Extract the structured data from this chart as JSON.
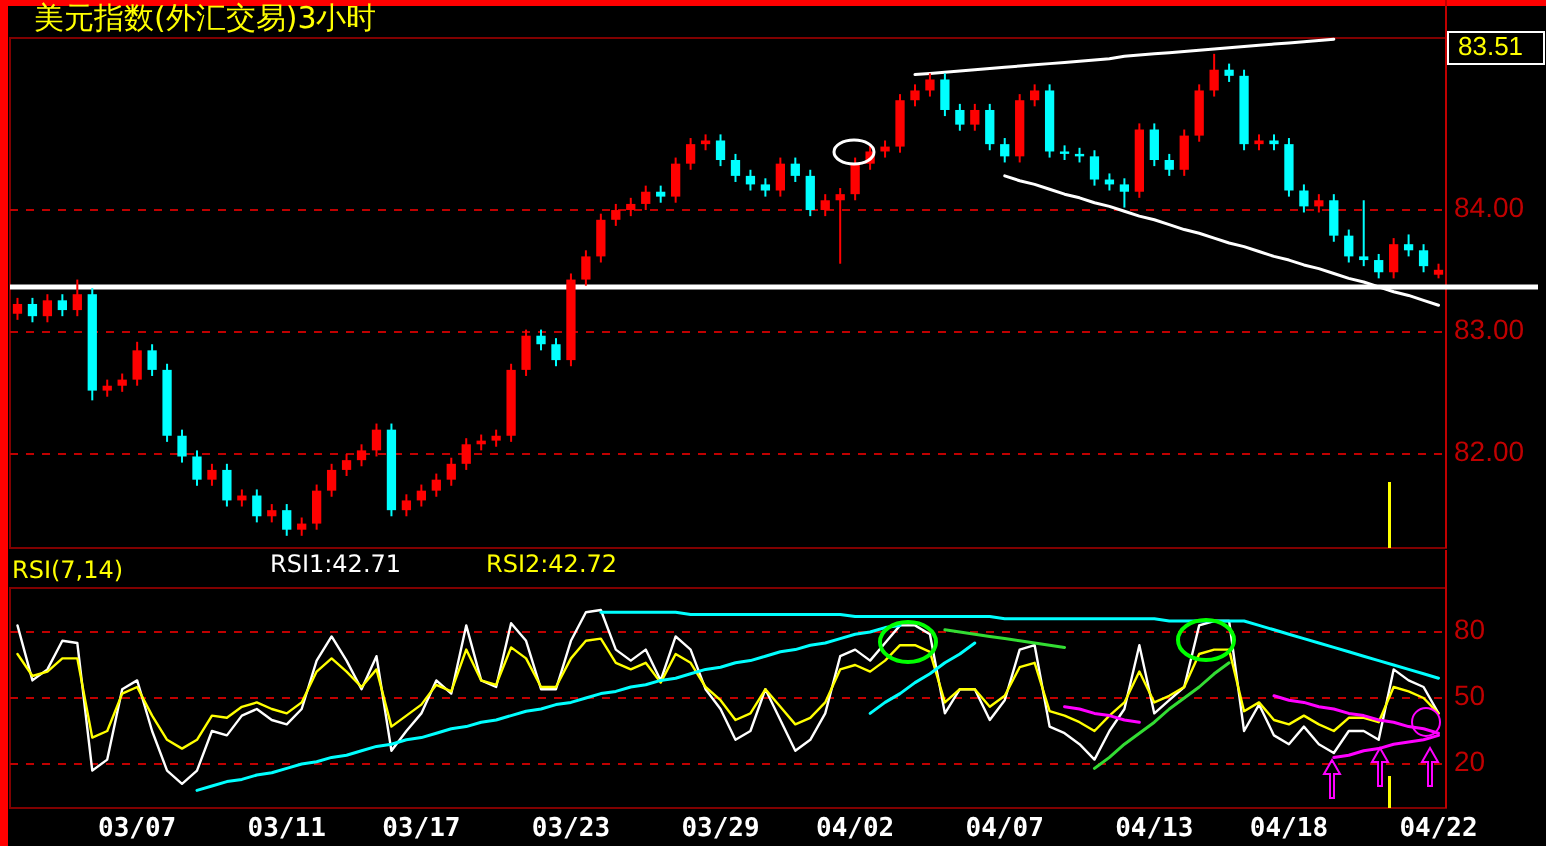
{
  "chart_data": [
    {
      "type": "candlestick",
      "title": "美元指数(外汇交易)3小时",
      "categories": [
        null,
        null,
        null,
        null,
        null,
        null,
        null,
        null,
        null,
        null,
        null,
        null,
        null,
        null,
        null,
        null,
        null,
        null,
        null,
        null,
        null,
        null,
        null,
        null,
        null,
        null,
        null,
        null,
        null,
        null,
        null,
        null,
        null,
        null,
        null,
        null,
        null,
        null,
        null,
        null,
        null,
        null,
        null,
        null,
        null,
        null,
        null,
        null,
        null,
        null,
        null,
        null,
        null,
        null,
        null,
        null,
        null,
        null,
        null,
        null,
        null,
        null,
        null,
        null,
        null,
        null,
        null,
        null,
        null,
        null,
        null,
        null,
        null,
        null,
        null,
        null,
        null,
        null,
        null,
        null,
        null,
        null,
        null,
        null,
        null,
        null,
        null,
        null,
        null,
        null,
        null,
        null,
        null,
        null,
        null,
        null
      ],
      "ohlc": [
        [
          83.15,
          83.28,
          83.1,
          83.23
        ],
        [
          83.23,
          83.28,
          83.08,
          83.13
        ],
        [
          83.13,
          83.31,
          83.08,
          83.26
        ],
        [
          83.26,
          83.31,
          83.13,
          83.18
        ],
        [
          83.18,
          83.43,
          83.13,
          83.31
        ],
        [
          83.31,
          83.36,
          82.44,
          82.52
        ],
        [
          82.52,
          82.61,
          82.47,
          82.56
        ],
        [
          82.56,
          82.66,
          82.51,
          82.61
        ],
        [
          82.61,
          82.92,
          82.56,
          82.85
        ],
        [
          82.85,
          82.9,
          82.64,
          82.69
        ],
        [
          82.69,
          82.74,
          82.1,
          82.15
        ],
        [
          82.15,
          82.2,
          81.93,
          81.98
        ],
        [
          81.98,
          82.03,
          81.74,
          81.79
        ],
        [
          81.79,
          81.92,
          81.74,
          81.87
        ],
        [
          81.87,
          81.92,
          81.57,
          81.62
        ],
        [
          81.62,
          81.71,
          81.57,
          81.66
        ],
        [
          81.66,
          81.71,
          81.44,
          81.49
        ],
        [
          81.49,
          81.59,
          81.44,
          81.54
        ],
        [
          81.54,
          81.59,
          81.33,
          81.38
        ],
        [
          81.38,
          81.48,
          81.33,
          81.43
        ],
        [
          81.43,
          81.75,
          81.38,
          81.7
        ],
        [
          81.7,
          81.92,
          81.65,
          81.87
        ],
        [
          81.87,
          82.0,
          81.82,
          81.95
        ],
        [
          81.95,
          82.08,
          81.9,
          82.03
        ],
        [
          82.03,
          82.25,
          81.98,
          82.2
        ],
        [
          82.2,
          82.25,
          81.49,
          81.54
        ],
        [
          81.54,
          81.67,
          81.49,
          81.62
        ],
        [
          81.62,
          81.75,
          81.57,
          81.7
        ],
        [
          81.7,
          81.84,
          81.65,
          81.79
        ],
        [
          81.79,
          81.97,
          81.74,
          81.92
        ],
        [
          81.92,
          82.13,
          81.87,
          82.08
        ],
        [
          82.08,
          82.16,
          82.03,
          82.11
        ],
        [
          82.11,
          82.2,
          82.06,
          82.15
        ],
        [
          82.15,
          82.74,
          82.1,
          82.69
        ],
        [
          82.69,
          83.02,
          82.64,
          82.97
        ],
        [
          82.97,
          83.02,
          82.85,
          82.9
        ],
        [
          82.9,
          82.95,
          82.72,
          82.77
        ],
        [
          82.77,
          83.48,
          82.72,
          83.43
        ],
        [
          83.43,
          83.67,
          83.38,
          83.62
        ],
        [
          83.62,
          83.97,
          83.57,
          83.92
        ],
        [
          83.92,
          84.05,
          83.87,
          84.0
        ],
        [
          84.0,
          84.1,
          83.95,
          84.05
        ],
        [
          84.05,
          84.2,
          84.0,
          84.15
        ],
        [
          84.15,
          84.2,
          84.06,
          84.11
        ],
        [
          84.11,
          84.43,
          84.06,
          84.38
        ],
        [
          84.38,
          84.59,
          84.33,
          84.54
        ],
        [
          84.54,
          84.62,
          84.49,
          84.57
        ],
        [
          84.57,
          84.62,
          84.36,
          84.41
        ],
        [
          84.41,
          84.46,
          84.23,
          84.28
        ],
        [
          84.28,
          84.33,
          84.16,
          84.21
        ],
        [
          84.21,
          84.26,
          84.11,
          84.16
        ],
        [
          84.16,
          84.43,
          84.11,
          84.38
        ],
        [
          84.38,
          84.43,
          84.23,
          84.28
        ],
        [
          84.28,
          84.33,
          83.95,
          84.0
        ],
        [
          84.0,
          84.13,
          83.95,
          84.08
        ],
        [
          84.08,
          84.18,
          83.56,
          84.13
        ],
        [
          84.13,
          84.43,
          84.08,
          84.38
        ],
        [
          84.38,
          84.53,
          84.33,
          84.48
        ],
        [
          84.48,
          84.57,
          84.43,
          84.52
        ],
        [
          84.52,
          84.95,
          84.47,
          84.9
        ],
        [
          84.9,
          85.03,
          84.85,
          84.98
        ],
        [
          84.98,
          85.12,
          84.93,
          85.07
        ],
        [
          85.07,
          85.12,
          84.77,
          84.82
        ],
        [
          84.82,
          84.87,
          84.65,
          84.7
        ],
        [
          84.7,
          84.87,
          84.65,
          84.82
        ],
        [
          84.82,
          84.87,
          84.49,
          84.54
        ],
        [
          84.54,
          84.59,
          84.39,
          84.44
        ],
        [
          84.44,
          84.95,
          84.39,
          84.9
        ],
        [
          84.9,
          85.03,
          84.85,
          84.98
        ],
        [
          84.98,
          85.03,
          84.43,
          84.48
        ],
        [
          84.48,
          84.53,
          84.41,
          84.46
        ],
        [
          84.46,
          84.51,
          84.39,
          84.44
        ],
        [
          84.44,
          84.49,
          84.2,
          84.25
        ],
        [
          84.25,
          84.3,
          84.16,
          84.21
        ],
        [
          84.21,
          84.26,
          84.02,
          84.15
        ],
        [
          84.15,
          84.71,
          84.1,
          84.66
        ],
        [
          84.66,
          84.71,
          84.36,
          84.41
        ],
        [
          84.41,
          84.46,
          84.28,
          84.33
        ],
        [
          84.33,
          84.66,
          84.28,
          84.61
        ],
        [
          84.61,
          85.03,
          84.56,
          84.98
        ],
        [
          84.98,
          85.28,
          84.93,
          85.15
        ],
        [
          85.15,
          85.2,
          85.05,
          85.1
        ],
        [
          85.1,
          85.15,
          84.49,
          84.54
        ],
        [
          84.54,
          84.62,
          84.49,
          84.57
        ],
        [
          84.57,
          84.62,
          84.49,
          84.54
        ],
        [
          84.54,
          84.59,
          84.11,
          84.16
        ],
        [
          84.16,
          84.21,
          83.98,
          84.03
        ],
        [
          84.03,
          84.13,
          83.98,
          84.08
        ],
        [
          84.08,
          84.13,
          83.74,
          83.79
        ],
        [
          83.79,
          83.84,
          83.57,
          83.62
        ],
        [
          83.62,
          84.08,
          83.54,
          83.59
        ],
        [
          83.59,
          83.64,
          83.44,
          83.49
        ],
        [
          83.49,
          83.77,
          83.44,
          83.72
        ],
        [
          83.72,
          83.8,
          83.62,
          83.67
        ],
        [
          83.67,
          83.72,
          83.49,
          83.54
        ],
        [
          83.47,
          83.56,
          83.44,
          83.51
        ]
      ],
      "colors": [
        "#ff0000",
        "#00ffff",
        "#ff0000",
        "#00ffff",
        "#ff0000",
        "#00ffff",
        "#ff0000",
        "#ff0000",
        "#ff0000",
        "#00ffff",
        "#00ffff",
        "#00ffff",
        "#00ffff",
        "#ff0000",
        "#00ffff",
        "#ff0000",
        "#00ffff",
        "#ff0000",
        "#00ffff",
        "#ff0000",
        "#ff0000",
        "#ff0000",
        "#ff0000",
        "#ff0000",
        "#ff0000",
        "#00ffff",
        "#ff0000",
        "#ff0000",
        "#ff0000",
        "#ff0000",
        "#ff0000",
        "#ff0000",
        "#ff0000",
        "#ff0000",
        "#ff0000",
        "#00ffff",
        "#00ffff",
        "#ff0000",
        "#ff0000",
        "#ff0000",
        "#ff0000",
        "#ff0000",
        "#ff0000",
        "#00ffff",
        "#ff0000",
        "#ff0000",
        "#ff0000",
        "#00ffff",
        "#00ffff",
        "#00ffff",
        "#00ffff",
        "#ff0000",
        "#00ffff",
        "#00ffff",
        "#ff0000",
        "#ff0000",
        "#ff0000",
        "#ff0000",
        "#ff0000",
        "#ff0000",
        "#ff0000",
        "#ff0000",
        "#00ffff",
        "#00ffff",
        "#ff0000",
        "#00ffff",
        "#00ffff",
        "#ff0000",
        "#ff0000",
        "#00ffff",
        "#00ffff",
        "#00ffff",
        "#00ffff",
        "#00ffff",
        "#00ffff",
        "#ff0000",
        "#00ffff",
        "#00ffff",
        "#ff0000",
        "#ff0000",
        "#ff0000",
        "#00ffff",
        "#00ffff",
        "#ff0000",
        "#00ffff",
        "#00ffff",
        "#00ffff",
        "#ff0000",
        "#00ffff",
        "#00ffff",
        "#00ffff",
        "#00ffff",
        "#ff0000",
        "#00ffff",
        "#00ffff",
        "#ff0000"
      ],
      "series": [
        {
          "type": "line",
          "color": "#ffffff",
          "values": [
            null,
            null,
            null,
            null,
            null,
            null,
            null,
            null,
            null,
            null,
            null,
            null,
            null,
            null,
            null,
            null,
            null,
            null,
            null,
            null,
            null,
            null,
            null,
            null,
            null,
            null,
            null,
            null,
            null,
            null,
            null,
            null,
            null,
            null,
            null,
            null,
            null,
            null,
            null,
            null,
            null,
            null,
            null,
            null,
            null,
            null,
            null,
            null,
            null,
            null,
            null,
            null,
            null,
            null,
            null,
            null,
            null,
            null,
            null,
            null,
            85.11,
            85.12,
            85.13,
            85.14,
            85.15,
            85.16,
            85.17,
            85.18,
            85.19,
            85.2,
            85.21,
            85.22,
            85.23,
            85.24,
            85.26,
            85.27,
            85.28,
            85.29,
            85.3,
            85.31,
            85.32,
            85.33,
            85.34,
            85.35,
            85.36,
            85.37,
            85.38,
            85.39,
            85.4,
            null,
            null,
            null,
            null,
            null,
            null,
            null
          ]
        },
        {
          "type": "line",
          "color": "#ffffff",
          "values": [
            null,
            null,
            null,
            null,
            null,
            null,
            null,
            null,
            null,
            null,
            null,
            null,
            null,
            null,
            null,
            null,
            null,
            null,
            null,
            null,
            null,
            null,
            null,
            null,
            null,
            null,
            null,
            null,
            null,
            null,
            null,
            null,
            null,
            null,
            null,
            null,
            null,
            null,
            null,
            null,
            null,
            null,
            null,
            null,
            null,
            null,
            null,
            null,
            null,
            null,
            null,
            null,
            null,
            null,
            null,
            null,
            null,
            null,
            null,
            null,
            null,
            null,
            null,
            null,
            null,
            null,
            84.28,
            84.24,
            84.21,
            84.17,
            84.13,
            84.1,
            84.06,
            84.03,
            83.99,
            83.95,
            83.92,
            83.88,
            83.84,
            83.81,
            83.77,
            83.73,
            83.7,
            83.66,
            83.62,
            83.59,
            83.55,
            83.52,
            83.48,
            83.44,
            83.41,
            83.37,
            83.33,
            83.3,
            83.26,
            83.22
          ]
        }
      ],
      "ref_lines": [
        {
          "axis": "y",
          "value": 83.37,
          "color": "#ffffff"
        }
      ],
      "annotations": [
        "83.51"
      ],
      "ylim": [
        81.23,
        85.41
      ],
      "yticks": [
        {
          "value": 82,
          "label": "82.00"
        },
        {
          "value": 83,
          "label": "83.00"
        },
        {
          "value": 84,
          "label": "84.00"
        }
      ],
      "grid": "y",
      "tick_labels": "y"
    },
    {
      "type": "line",
      "title": "RSI(7,14)",
      "categories": [
        null,
        null,
        null,
        null,
        null,
        null,
        null,
        null,
        "03/07",
        null,
        null,
        null,
        null,
        null,
        null,
        null,
        null,
        null,
        "03/11",
        null,
        null,
        null,
        null,
        null,
        null,
        null,
        null,
        "03/17",
        null,
        null,
        null,
        null,
        null,
        null,
        null,
        null,
        null,
        "03/23",
        null,
        null,
        null,
        null,
        null,
        null,
        null,
        null,
        null,
        "03/29",
        null,
        null,
        null,
        null,
        null,
        null,
        null,
        null,
        "04/02",
        null,
        null,
        null,
        null,
        null,
        null,
        null,
        null,
        null,
        "04/07",
        null,
        null,
        null,
        null,
        null,
        null,
        null,
        null,
        null,
        "04/13",
        null,
        null,
        null,
        null,
        null,
        null,
        null,
        null,
        "04/18",
        null,
        null,
        null,
        null,
        null,
        null,
        null,
        null,
        null,
        "04/22"
      ],
      "series": [
        {
          "name": "RSI1:42.71",
          "color": "#ffffff",
          "values": [
            83,
            58,
            63,
            76,
            75,
            17,
            22,
            54,
            58,
            35,
            17,
            11,
            17,
            35,
            33,
            42,
            45,
            40,
            38,
            45,
            67,
            78,
            67,
            54,
            69,
            26,
            35,
            43,
            58,
            52,
            83,
            58,
            55,
            84,
            76,
            54,
            54,
            76,
            89,
            90,
            72,
            67,
            72,
            58,
            78,
            72,
            54,
            45,
            31,
            35,
            54,
            40,
            26,
            31,
            43,
            69,
            72,
            67,
            75,
            83,
            83,
            79,
            43,
            54,
            54,
            40,
            49,
            72,
            74,
            37,
            34,
            29,
            22,
            35,
            45,
            74,
            43,
            49,
            55,
            83,
            85,
            85,
            35,
            47,
            33,
            29,
            37,
            29,
            25,
            35,
            35,
            31,
            63,
            58,
            55,
            43
          ]
        },
        {
          "name": "RSI2:42.72",
          "color": "#ffff00",
          "values": [
            70,
            60,
            62,
            68,
            68,
            32,
            35,
            52,
            55,
            42,
            31,
            27,
            31,
            42,
            41,
            46,
            48,
            45,
            43,
            48,
            62,
            68,
            62,
            55,
            63,
            37,
            42,
            47,
            56,
            53,
            72,
            58,
            56,
            73,
            68,
            55,
            55,
            68,
            76,
            77,
            66,
            63,
            66,
            57,
            70,
            66,
            55,
            49,
            40,
            43,
            54,
            46,
            38,
            41,
            48,
            63,
            65,
            62,
            67,
            74,
            74,
            71,
            48,
            54,
            54,
            46,
            51,
            64,
            66,
            44,
            42,
            39,
            35,
            42,
            48,
            62,
            48,
            51,
            55,
            70,
            72,
            72,
            44,
            48,
            40,
            38,
            42,
            38,
            35,
            41,
            41,
            39,
            55,
            53,
            50,
            43
          ]
        },
        {
          "type": "line",
          "color": "#00ffff",
          "values": [
            null,
            null,
            null,
            null,
            null,
            null,
            null,
            null,
            null,
            null,
            null,
            null,
            8,
            10,
            12,
            13,
            15,
            16,
            18,
            20,
            21,
            23,
            24,
            26,
            28,
            29,
            31,
            32,
            34,
            36,
            37,
            39,
            40,
            42,
            44,
            45,
            47,
            48,
            50,
            52,
            53,
            55,
            56,
            58,
            59,
            61,
            63,
            64,
            66,
            67,
            69,
            71,
            72,
            74,
            75,
            77,
            79,
            80,
            82,
            83,
            null,
            null,
            null,
            null,
            null,
            null,
            null,
            null,
            null,
            null,
            null,
            null,
            null,
            null,
            null,
            null,
            null,
            null,
            null,
            null,
            null,
            null,
            null,
            null,
            null,
            null,
            null,
            null,
            null,
            null,
            null,
            null,
            null,
            null,
            null,
            null
          ]
        },
        {
          "type": "line",
          "color": "#00ffff",
          "values": [
            null,
            null,
            null,
            null,
            null,
            null,
            null,
            null,
            null,
            null,
            null,
            null,
            null,
            null,
            null,
            null,
            null,
            null,
            null,
            null,
            null,
            null,
            null,
            null,
            null,
            null,
            null,
            null,
            null,
            null,
            null,
            null,
            null,
            null,
            null,
            null,
            null,
            null,
            null,
            89,
            89,
            89,
            89,
            89,
            89,
            88,
            88,
            88,
            88,
            88,
            88,
            88,
            88,
            88,
            88,
            88,
            87,
            87,
            87,
            87,
            87,
            87,
            87,
            87,
            87,
            87,
            86,
            86,
            86,
            86,
            86,
            86,
            86,
            86,
            86,
            86,
            86,
            85,
            85,
            85,
            85,
            85,
            85,
            83,
            81,
            79,
            77,
            75,
            73,
            71,
            69,
            67,
            65,
            63,
            61,
            59
          ]
        },
        {
          "type": "line",
          "color": "#00ffff",
          "values": [
            null,
            null,
            null,
            null,
            null,
            null,
            null,
            null,
            null,
            null,
            null,
            null,
            null,
            null,
            null,
            null,
            null,
            null,
            null,
            null,
            null,
            null,
            null,
            null,
            null,
            null,
            null,
            null,
            null,
            null,
            null,
            null,
            null,
            null,
            null,
            null,
            null,
            null,
            null,
            null,
            null,
            null,
            null,
            null,
            null,
            null,
            null,
            null,
            null,
            null,
            null,
            null,
            null,
            null,
            null,
            null,
            null,
            43,
            48,
            52,
            57,
            61,
            66,
            70,
            75,
            null,
            null,
            null,
            null,
            null,
            null,
            null,
            null,
            null,
            null,
            null,
            null,
            null,
            null,
            null,
            null,
            null,
            null,
            null,
            null,
            null,
            null,
            null,
            null,
            null,
            null,
            null,
            null,
            null,
            null,
            null
          ]
        },
        {
          "type": "line",
          "color": "#33dd33",
          "values": [
            null,
            null,
            null,
            null,
            null,
            null,
            null,
            null,
            null,
            null,
            null,
            null,
            null,
            null,
            null,
            null,
            null,
            null,
            null,
            null,
            null,
            null,
            null,
            null,
            null,
            null,
            null,
            null,
            null,
            null,
            null,
            null,
            null,
            null,
            null,
            null,
            null,
            null,
            null,
            null,
            null,
            null,
            null,
            null,
            null,
            null,
            null,
            null,
            null,
            null,
            null,
            null,
            null,
            null,
            null,
            null,
            null,
            null,
            null,
            null,
            null,
            null,
            81,
            80,
            79,
            78,
            77,
            76,
            75,
            74,
            73,
            null,
            null,
            null,
            null,
            null,
            null,
            null,
            null,
            null,
            null,
            null,
            null,
            null,
            null,
            null,
            null,
            null,
            null,
            null,
            null,
            null,
            null,
            null,
            null,
            null
          ]
        },
        {
          "type": "line",
          "color": "#33dd33",
          "values": [
            null,
            null,
            null,
            null,
            null,
            null,
            null,
            null,
            null,
            null,
            null,
            null,
            null,
            null,
            null,
            null,
            null,
            null,
            null,
            null,
            null,
            null,
            null,
            null,
            null,
            null,
            null,
            null,
            null,
            null,
            null,
            null,
            null,
            null,
            null,
            null,
            null,
            null,
            null,
            null,
            null,
            null,
            null,
            null,
            null,
            null,
            null,
            null,
            null,
            null,
            null,
            null,
            null,
            null,
            null,
            null,
            null,
            null,
            null,
            null,
            null,
            null,
            null,
            null,
            null,
            null,
            null,
            null,
            null,
            null,
            null,
            null,
            18,
            23,
            29,
            34,
            39,
            45,
            50,
            55,
            61,
            66,
            null,
            null,
            null,
            null,
            null,
            null,
            null,
            null,
            null,
            null,
            null,
            null,
            null,
            null
          ]
        },
        {
          "type": "line",
          "color": "#ff00ff",
          "values": [
            null,
            null,
            null,
            null,
            null,
            null,
            null,
            null,
            null,
            null,
            null,
            null,
            null,
            null,
            null,
            null,
            null,
            null,
            null,
            null,
            null,
            null,
            null,
            null,
            null,
            null,
            null,
            null,
            null,
            null,
            null,
            null,
            null,
            null,
            null,
            null,
            null,
            null,
            null,
            null,
            null,
            null,
            null,
            null,
            null,
            null,
            null,
            null,
            null,
            null,
            null,
            null,
            null,
            null,
            null,
            null,
            null,
            null,
            null,
            null,
            null,
            null,
            null,
            null,
            null,
            null,
            null,
            null,
            null,
            null,
            46,
            45,
            43,
            42,
            40,
            39,
            null,
            null,
            null,
            null,
            null,
            null,
            null,
            null,
            null,
            null,
            null,
            null,
            null,
            null,
            null,
            null,
            null,
            null,
            null,
            null
          ]
        },
        {
          "type": "line",
          "color": "#ff00ff",
          "values": [
            null,
            null,
            null,
            null,
            null,
            null,
            null,
            null,
            null,
            null,
            null,
            null,
            null,
            null,
            null,
            null,
            null,
            null,
            null,
            null,
            null,
            null,
            null,
            null,
            null,
            null,
            null,
            null,
            null,
            null,
            null,
            null,
            null,
            null,
            null,
            null,
            null,
            null,
            null,
            null,
            null,
            null,
            null,
            null,
            null,
            null,
            null,
            null,
            null,
            null,
            null,
            null,
            null,
            null,
            null,
            null,
            null,
            null,
            null,
            null,
            null,
            null,
            null,
            null,
            null,
            null,
            null,
            null,
            null,
            null,
            null,
            null,
            null,
            null,
            null,
            null,
            null,
            null,
            null,
            null,
            null,
            null,
            null,
            null,
            51,
            49,
            48,
            46,
            45,
            43,
            42,
            40,
            39,
            37,
            36,
            34
          ]
        },
        {
          "type": "line",
          "color": "#ff00ff",
          "values": [
            null,
            null,
            null,
            null,
            null,
            null,
            null,
            null,
            null,
            null,
            null,
            null,
            null,
            null,
            null,
            null,
            null,
            null,
            null,
            null,
            null,
            null,
            null,
            null,
            null,
            null,
            null,
            null,
            null,
            null,
            null,
            null,
            null,
            null,
            null,
            null,
            null,
            null,
            null,
            null,
            null,
            null,
            null,
            null,
            null,
            null,
            null,
            null,
            null,
            null,
            null,
            null,
            null,
            null,
            null,
            null,
            null,
            null,
            null,
            null,
            null,
            null,
            null,
            null,
            null,
            null,
            null,
            null,
            null,
            null,
            null,
            null,
            null,
            null,
            null,
            null,
            null,
            null,
            null,
            null,
            null,
            null,
            null,
            null,
            null,
            null,
            null,
            null,
            23,
            24,
            26,
            27,
            29,
            30,
            31,
            33
          ]
        }
      ],
      "ylim": [
        0,
        100
      ],
      "yticks": [
        20,
        50,
        80
      ],
      "grid": "y",
      "legend": "top left"
    }
  ]
}
